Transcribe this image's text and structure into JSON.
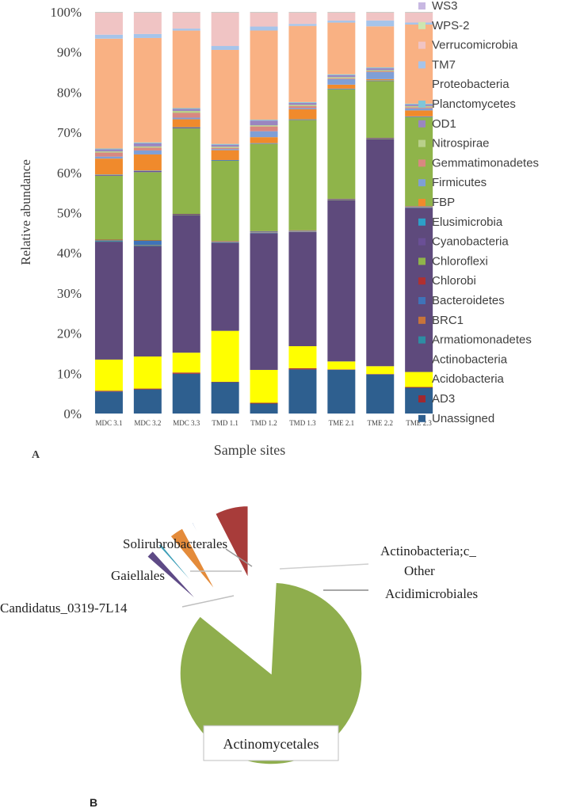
{
  "chart_data": [
    {
      "type": "bar",
      "stacked": true,
      "panel_label": "A",
      "xlabel": "Sample sites",
      "ylabel": "Relative abundance",
      "ylim": [
        0,
        100
      ],
      "yticks": [
        "0%",
        "10%",
        "20%",
        "30%",
        "40%",
        "50%",
        "60%",
        "70%",
        "80%",
        "90%",
        "100%"
      ],
      "categories": [
        "MDC 3.1",
        "MDC 3.2",
        "MDC 3.3",
        "TMD 1.1",
        "TMD 1.2",
        "TMD 1.3",
        "TME 2.1",
        "TME 2.2",
        "TME 2.3"
      ],
      "series": [
        {
          "name": "Unassigned",
          "color": "#2e5f8f",
          "values": [
            5.5,
            6,
            10,
            8,
            2.5,
            11,
            11,
            10,
            6.5
          ]
        },
        {
          "name": "AD3",
          "color": "#a02830",
          "values": [
            0.2,
            0.2,
            0.3,
            0.1,
            0.2,
            0.3,
            0.1,
            0.1,
            0.2
          ]
        },
        {
          "name": "Acidobacteria",
          "color": "#ffff00",
          "values": [
            7.8,
            8,
            5,
            13,
            8.3,
            5.5,
            2,
            2,
            3.8
          ]
        },
        {
          "name": "Actinobacteria",
          "color": "#5e4a7c",
          "values": [
            29.5,
            27.5,
            34.5,
            22.5,
            34.5,
            28.5,
            40.5,
            58,
            41.5
          ]
        },
        {
          "name": "Armatiomonadetes",
          "color": "#2d8da3",
          "values": [
            0.2,
            0.2,
            0.1,
            0.1,
            0.1,
            0.1,
            0.1,
            0.1,
            0.1
          ]
        },
        {
          "name": "BRC1",
          "color": "#c8743a",
          "values": [
            0.1,
            0.1,
            0.1,
            0.1,
            0.1,
            0.1,
            0.1,
            0.1,
            0.1
          ]
        },
        {
          "name": "Bacteroidetes",
          "color": "#3f73b8",
          "values": [
            0.1,
            1,
            0.1,
            0.1,
            0.2,
            0.1,
            0.1,
            0.1,
            0.1
          ]
        },
        {
          "name": "Chlorobi",
          "color": "#b03030",
          "values": [
            0.1,
            0.1,
            0.1,
            0.1,
            0.1,
            0.1,
            0.1,
            0.1,
            0.1
          ]
        },
        {
          "name": "Chloroflexi",
          "color": "#8fb44a",
          "values": [
            16,
            17,
            21.5,
            20.5,
            22,
            27.5,
            27.5,
            14.5,
            22.5
          ]
        },
        {
          "name": "Cyanobacteria",
          "color": "#6a4f96",
          "values": [
            0.2,
            0.3,
            0.2,
            0.1,
            0.1,
            0.1,
            0.1,
            0.1,
            0.1
          ]
        },
        {
          "name": "Elusimicrobia",
          "color": "#2da0c8",
          "values": [
            0.1,
            0.1,
            0.1,
            0.1,
            0.1,
            0.1,
            0.1,
            0.1,
            0.1
          ]
        },
        {
          "name": "FBP",
          "color": "#f08a2c",
          "values": [
            4,
            4,
            2,
            2.5,
            1.5,
            2.5,
            1,
            0.3,
            1.5
          ]
        },
        {
          "name": "Firmicutes",
          "color": "#7f9fd6",
          "values": [
            0.5,
            1,
            0.4,
            0.3,
            1.5,
            0.3,
            1.4,
            1.8,
            0.5
          ]
        },
        {
          "name": "Gemmatimonadetes",
          "color": "#d98880",
          "values": [
            1,
            0.7,
            1.2,
            0.3,
            1.2,
            0.5,
            0.2,
            0.2,
            0.3
          ]
        },
        {
          "name": "Nitrospirae",
          "color": "#b9d08a",
          "values": [
            0.3,
            0.3,
            0.5,
            0.3,
            0.3,
            0.3,
            0.3,
            0.3,
            0.3
          ]
        },
        {
          "name": "OD1",
          "color": "#9a86c0",
          "values": [
            0.5,
            0.8,
            0.5,
            0.5,
            1.2,
            0.5,
            0.5,
            0.5,
            0.4
          ]
        },
        {
          "name": "Planctomycetes",
          "color": "#7fc6d8",
          "values": [
            0.2,
            0.2,
            0.2,
            0.2,
            0.2,
            0.2,
            0.2,
            0.2,
            0.2
          ]
        },
        {
          "name": "Proteobacteria",
          "color": "#f9b183",
          "values": [
            27.5,
            26,
            19.5,
            24,
            22.5,
            19,
            13,
            10.5,
            20
          ]
        },
        {
          "name": "TM7",
          "color": "#a6c4ea",
          "values": [
            1,
            1,
            0.5,
            1,
            1,
            0.5,
            0.5,
            1.5,
            0.5
          ]
        },
        {
          "name": "Verrucomicrobia",
          "color": "#f0c4c4",
          "values": [
            5.5,
            5.3,
            4,
            8.5,
            3.5,
            2.8,
            2,
            2,
            2.5
          ]
        },
        {
          "name": "WPS-2",
          "color": "#cde6b0",
          "values": [
            0.1,
            0.1,
            0.1,
            0.1,
            0.1,
            0.1,
            0.1,
            0.1,
            0.1
          ]
        },
        {
          "name": "WS3",
          "color": "#c8b8e2",
          "values": [
            0.1,
            0.1,
            0.1,
            0.1,
            0.1,
            0.1,
            0.1,
            0.1,
            0.1
          ]
        }
      ]
    },
    {
      "type": "pie",
      "panel_label": "B",
      "exploded": true,
      "slices": [
        {
          "name": "Actinomycetales",
          "value": 86.5,
          "color": "#8fae4d"
        },
        {
          "name": "Candidatus_0319-7L14",
          "value": 1.8,
          "color": "#5e4a86"
        },
        {
          "name": "Gaiellales",
          "value": 0.7,
          "color": "#3d9fb8"
        },
        {
          "name": "Solirubrobacterales",
          "value": 3.2,
          "color": "#e48b3a"
        },
        {
          "name": "Actinobacteria;c_ Other",
          "value": 0.3,
          "color": "#7e9ccc"
        },
        {
          "name": "Acidimicrobiales",
          "value": 7.5,
          "color": "#a83c3a"
        }
      ],
      "label_lines": {
        "actinomycetales": "Actinomycetales",
        "candidatus": "Candidatus_0319-7L14",
        "gaiellales": "Gaiellales",
        "solirubro": "Solirubrobacterales",
        "other_1": "Actinobacteria;c_",
        "other_2": "Other",
        "acidimicro": "Acidimicrobiales"
      }
    }
  ]
}
